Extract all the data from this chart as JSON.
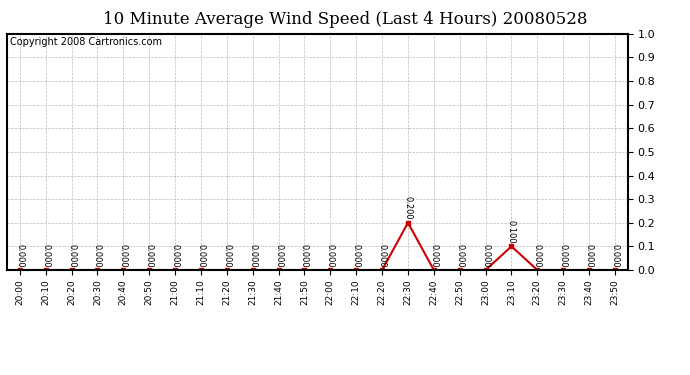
{
  "title": "10 Minute Average Wind Speed (Last 4 Hours) 20080528",
  "copyright_text": "Copyright 2008 Cartronics.com",
  "x_labels": [
    "20:00",
    "20:10",
    "20:20",
    "20:30",
    "20:40",
    "20:50",
    "21:00",
    "21:10",
    "21:20",
    "21:30",
    "21:40",
    "21:50",
    "22:00",
    "22:10",
    "22:20",
    "22:30",
    "22:40",
    "22:50",
    "23:00",
    "23:10",
    "23:20",
    "23:30",
    "23:40",
    "23:50"
  ],
  "y_values": [
    0.0,
    0.0,
    0.0,
    0.0,
    0.0,
    0.0,
    0.0,
    0.0,
    0.0,
    0.0,
    0.0,
    0.0,
    0.0,
    0.0,
    0.0,
    0.2,
    0.0,
    0.0,
    0.0,
    0.1,
    0.0,
    0.0,
    0.0,
    0.0
  ],
  "ylim": [
    0.0,
    1.0
  ],
  "yticks": [
    0.0,
    0.1,
    0.2,
    0.3,
    0.4,
    0.5,
    0.6,
    0.7,
    0.8,
    0.9,
    1.0
  ],
  "line_color": "#cc0000",
  "marker_color": "#cc0000",
  "grid_color": "#bbbbbb",
  "bg_color": "#ffffff",
  "plot_bg_color": "#ffffff",
  "title_fontsize": 12,
  "copyright_fontsize": 7,
  "annotation_fontsize": 6,
  "xtick_fontsize": 6.5,
  "ytick_fontsize": 8
}
